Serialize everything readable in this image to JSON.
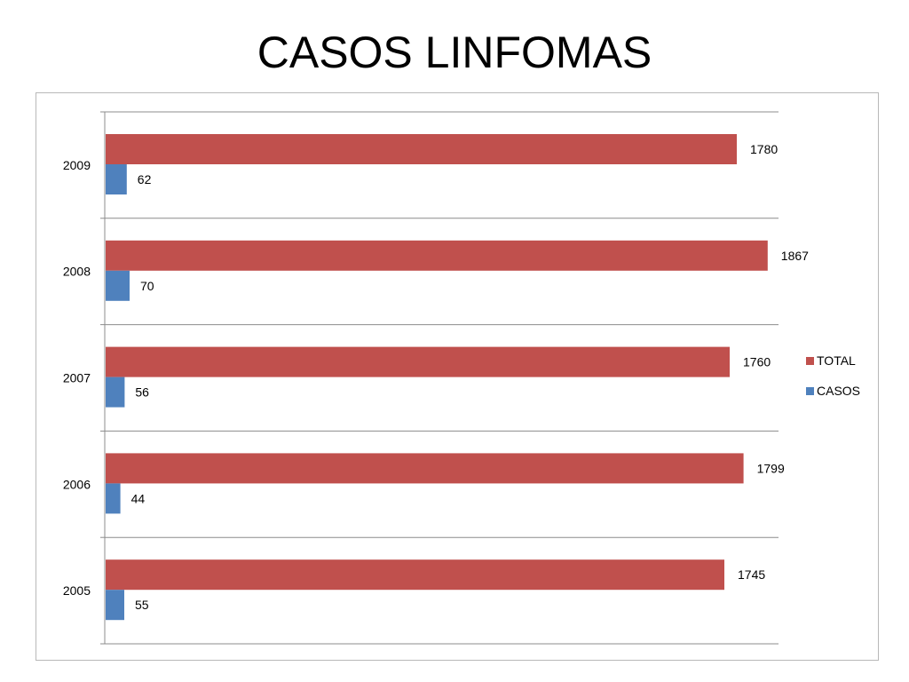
{
  "slide": {
    "title": "CASOS LINFOMAS"
  },
  "chart_data": {
    "type": "bar",
    "orientation": "horizontal",
    "categories": [
      "2005",
      "2006",
      "2007",
      "2008",
      "2009"
    ],
    "series": [
      {
        "name": "CASOS",
        "color": "#4f81bd",
        "values": [
          55,
          44,
          56,
          70,
          62
        ]
      },
      {
        "name": "TOTAL",
        "color": "#c0504d",
        "values": [
          1745,
          1799,
          1760,
          1867,
          1780
        ]
      }
    ],
    "xlim": [
      0,
      2000
    ],
    "grid": "horizontal category separators",
    "legend_position": "right",
    "data_labels": true
  }
}
